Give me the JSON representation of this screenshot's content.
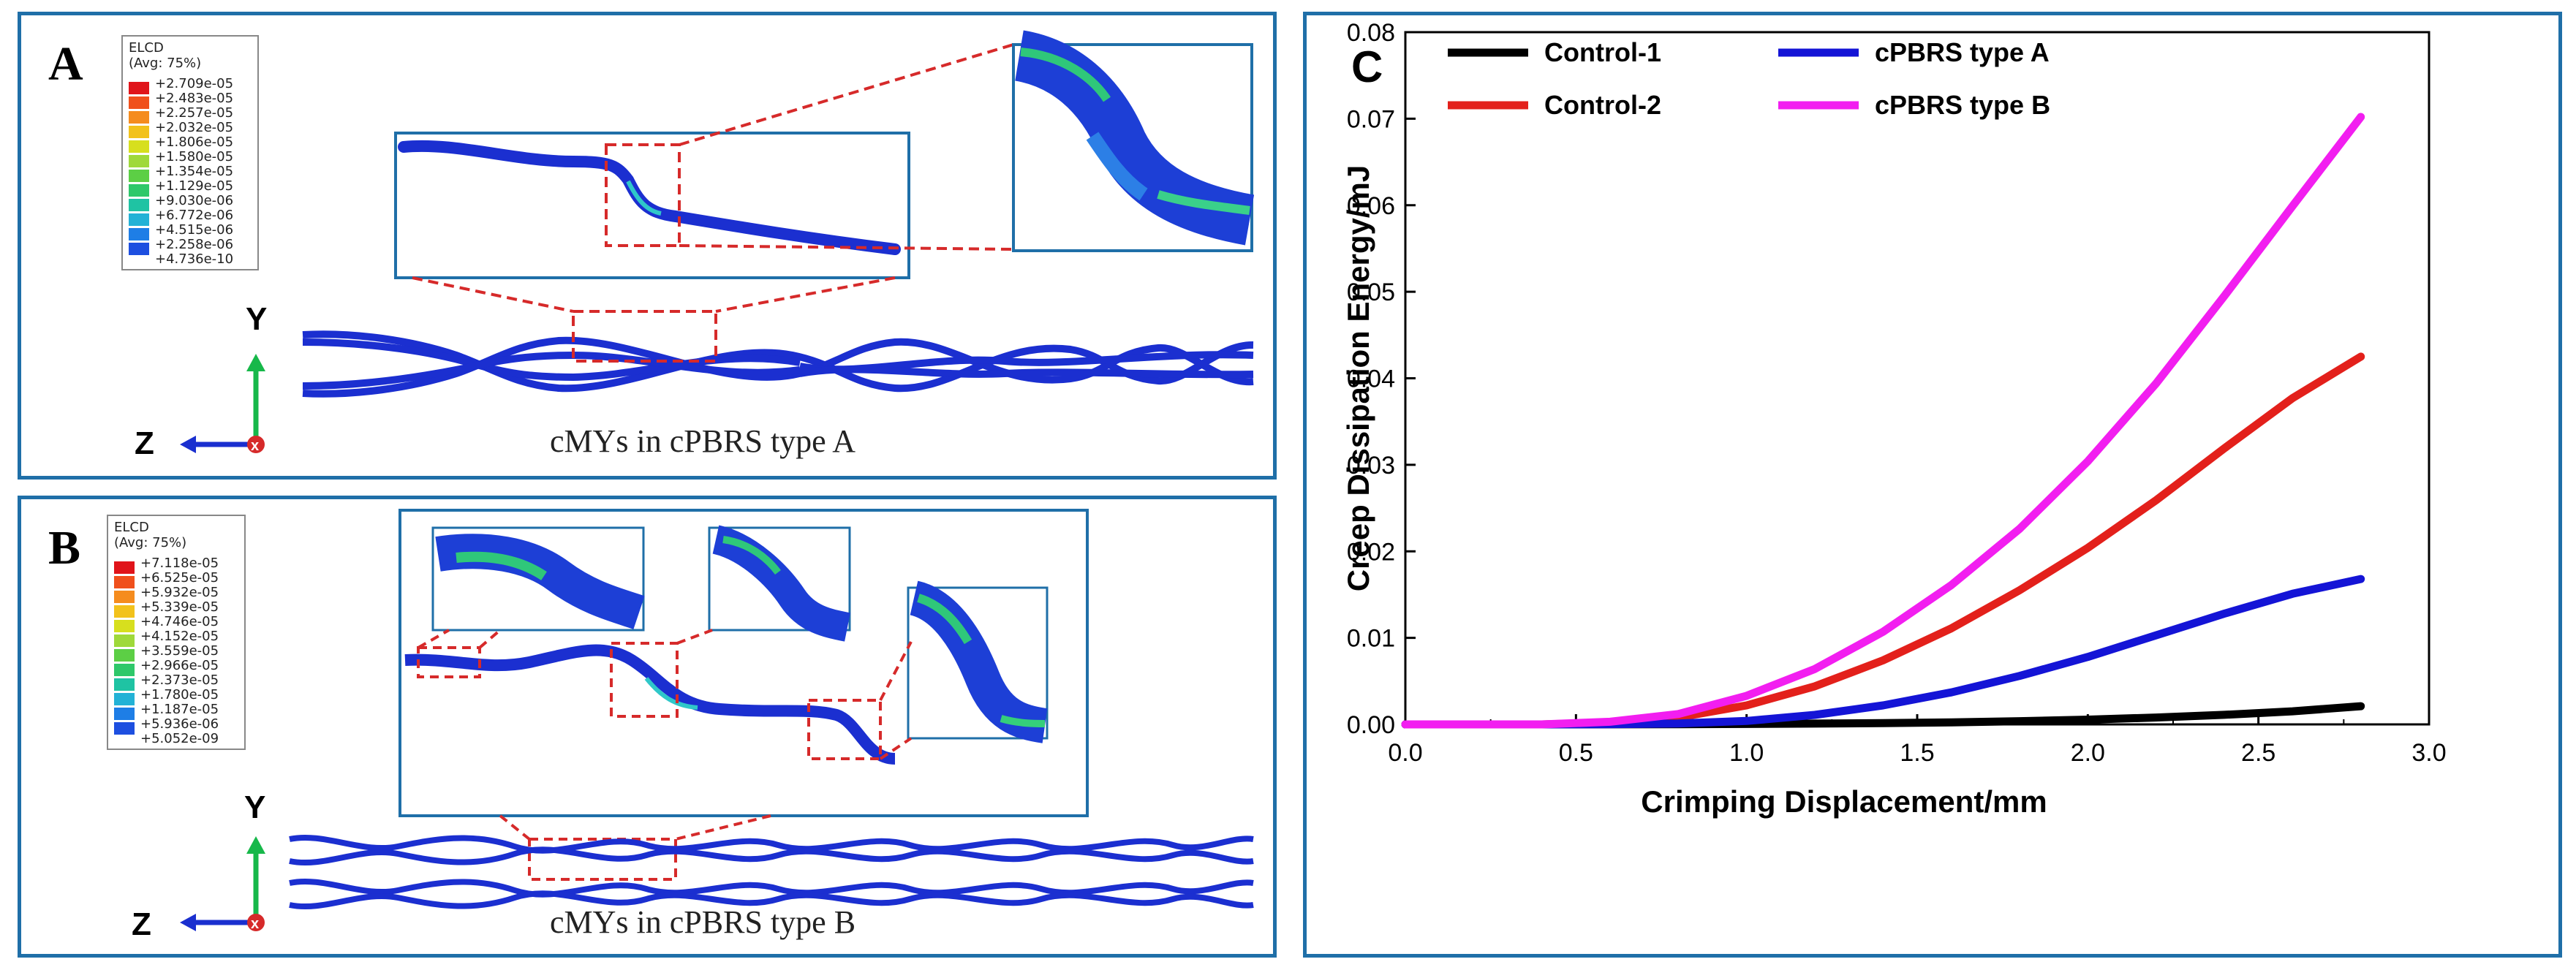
{
  "panel_a": {
    "letter": "A",
    "legend_title": "ELCD",
    "legend_avg": "(Avg: 75%)",
    "legend_values": [
      "+2.709e-05",
      "+2.483e-05",
      "+2.257e-05",
      "+2.032e-05",
      "+1.806e-05",
      "+1.580e-05",
      "+1.354e-05",
      "+1.129e-05",
      "+9.030e-06",
      "+6.772e-06",
      "+4.515e-06",
      "+2.258e-06",
      "+4.736e-10"
    ],
    "caption": "cMYs in cPBRS type A",
    "axis_y": "Y",
    "axis_z": "Z"
  },
  "panel_b": {
    "letter": "B",
    "legend_title": "ELCD",
    "legend_avg": "(Avg: 75%)",
    "legend_values": [
      "+7.118e-05",
      "+6.525e-05",
      "+5.932e-05",
      "+5.339e-05",
      "+4.746e-05",
      "+4.152e-05",
      "+3.559e-05",
      "+2.966e-05",
      "+2.373e-05",
      "+1.780e-05",
      "+1.187e-05",
      "+5.936e-06",
      "+5.052e-09"
    ],
    "caption": "cMYs in cPBRS type B",
    "axis_y": "Y",
    "axis_z": "Z"
  },
  "legend_colors": [
    "#e0141a",
    "#f0501c",
    "#f58c1e",
    "#f2c21b",
    "#d7df1e",
    "#9fd93a",
    "#5ccf45",
    "#2ec86a",
    "#1fc3a3",
    "#23b2d6",
    "#1e7ee6",
    "#1d4fe0",
    "#1616b8"
  ],
  "chart_data": {
    "type": "line",
    "panel_letter": "C",
    "xlabel": "Crimping Displacement/mm",
    "ylabel": "Creep Dissipation Energy/mJ",
    "xlim": [
      0,
      3.0
    ],
    "ylim": [
      0,
      0.08
    ],
    "xticks": [
      "0.0",
      "0.5",
      "1.0",
      "1.5",
      "2.0",
      "2.5",
      "3.0"
    ],
    "yticks": [
      "0.00",
      "0.01",
      "0.02",
      "0.03",
      "0.04",
      "0.05",
      "0.06",
      "0.07",
      "0.08"
    ],
    "x": [
      0.0,
      0.2,
      0.4,
      0.6,
      0.8,
      1.0,
      1.2,
      1.4,
      1.6,
      1.8,
      2.0,
      2.2,
      2.4,
      2.6,
      2.8
    ],
    "series": [
      {
        "name": "Control-1",
        "color": "#000000",
        "values": [
          0,
          0,
          0,
          1e-05,
          2e-05,
          5e-05,
          9e-05,
          0.00015,
          0.00024,
          0.00037,
          0.00055,
          0.00079,
          0.00111,
          0.00151,
          0.0021
        ]
      },
      {
        "name": "Control-2",
        "color": "#e3201b",
        "values": [
          0,
          0,
          0,
          0.0002,
          0.0008,
          0.0022,
          0.0044,
          0.0074,
          0.0111,
          0.0155,
          0.0204,
          0.0259,
          0.0319,
          0.0377,
          0.0425
        ]
      },
      {
        "name": "cPBRS type A",
        "color": "#1414d6",
        "values": [
          0,
          0,
          0,
          2e-05,
          0.0001,
          0.0004,
          0.0011,
          0.0022,
          0.0037,
          0.0056,
          0.0078,
          0.0103,
          0.0128,
          0.0151,
          0.0168
        ]
      },
      {
        "name": "cPBRS type B",
        "color": "#f21ef0",
        "values": [
          0,
          0,
          0,
          0.0003,
          0.0012,
          0.0033,
          0.0064,
          0.0107,
          0.0161,
          0.0226,
          0.0304,
          0.0394,
          0.0495,
          0.0599,
          0.0702
        ]
      }
    ],
    "legend_position": "top"
  }
}
